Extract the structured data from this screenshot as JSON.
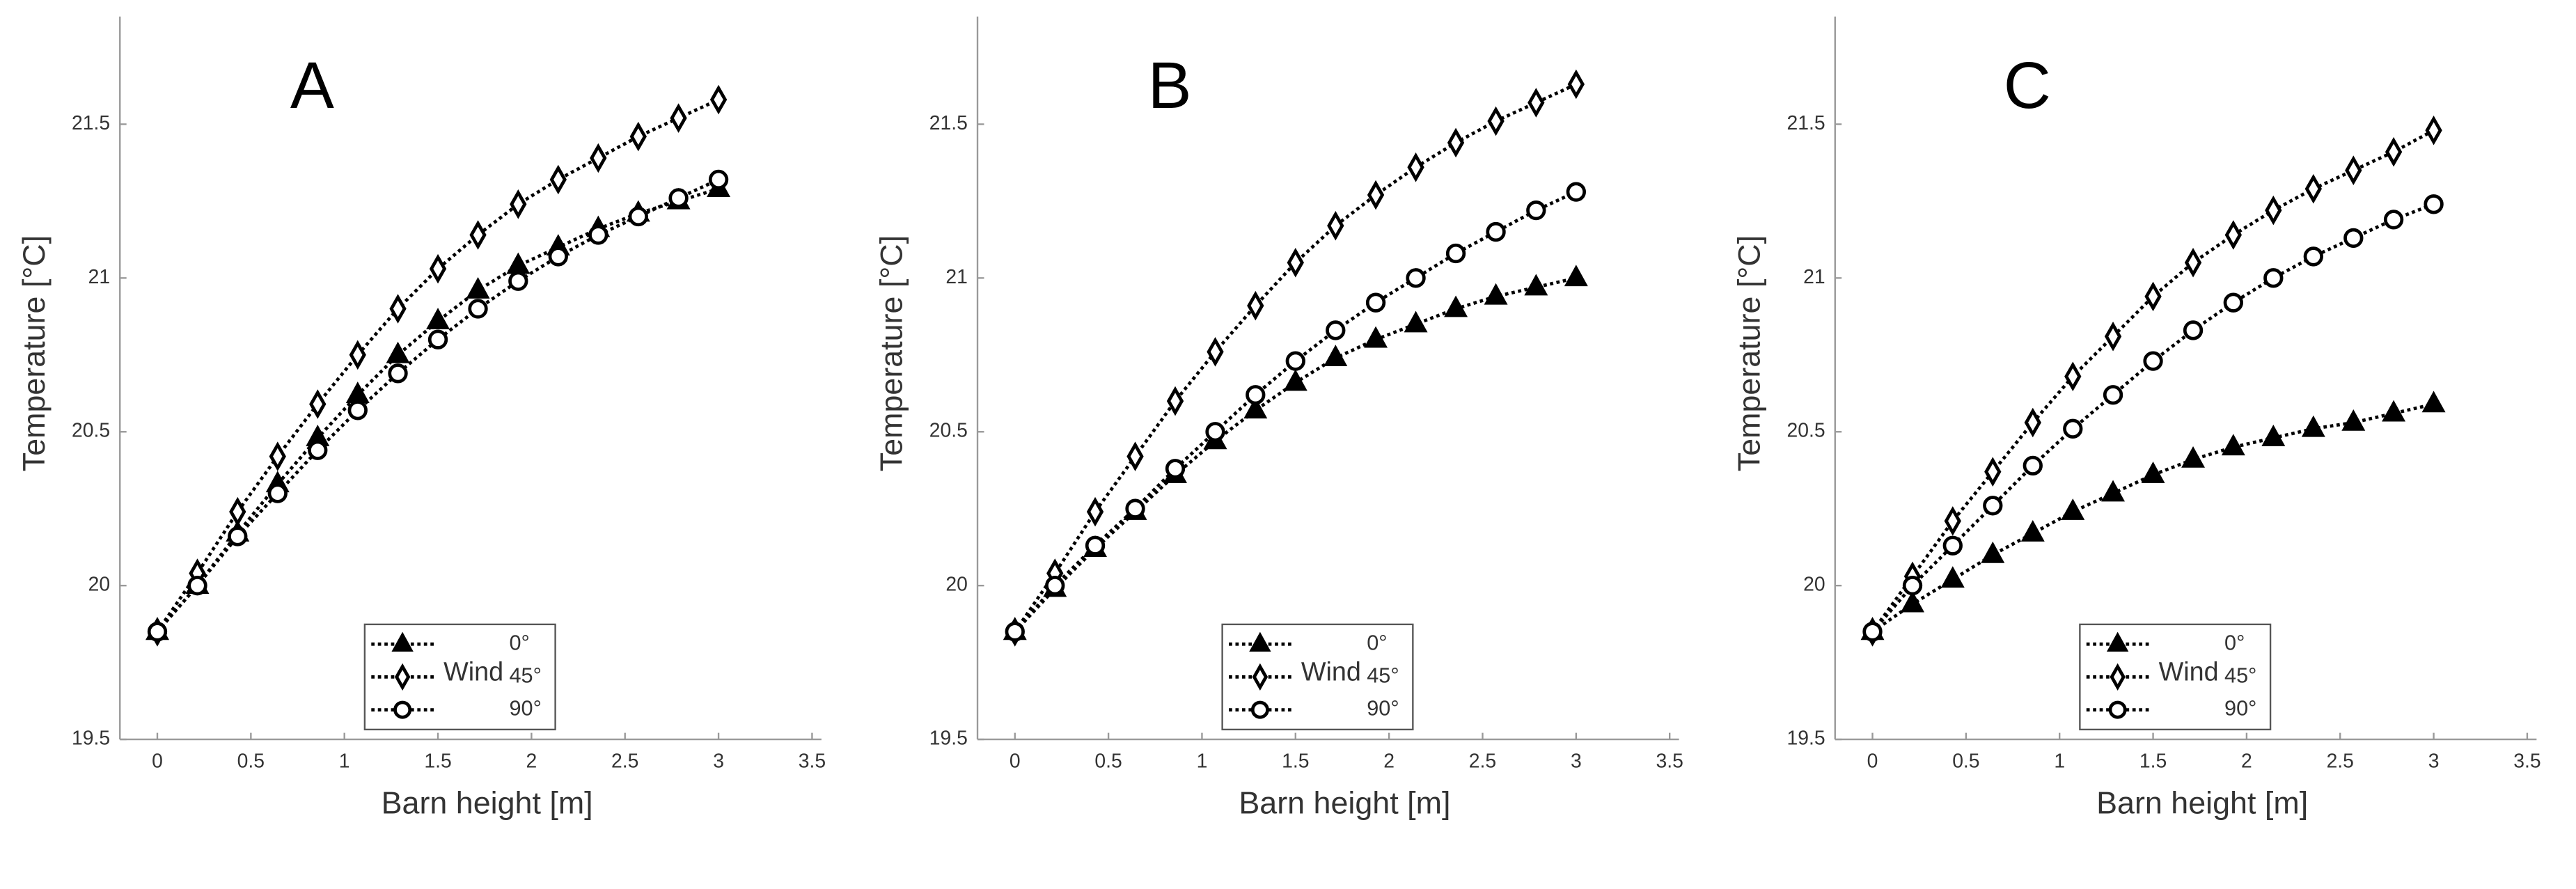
{
  "chart_data": [
    {
      "type": "line",
      "title": "A",
      "x_label": "Barn height [m]",
      "y_label": "Temperature [°C]",
      "legend_title": "Wind",
      "x": [
        0,
        0.214,
        0.429,
        0.643,
        0.857,
        1.071,
        1.286,
        1.5,
        1.714,
        1.929,
        2.143,
        2.357,
        2.571,
        2.786,
        3
      ],
      "series": [
        {
          "name": "0°",
          "color": "#000000",
          "marker": "triangle",
          "values": [
            19.85,
            20.0,
            20.17,
            20.33,
            20.48,
            20.62,
            20.75,
            20.86,
            20.96,
            21.04,
            21.1,
            21.16,
            21.21,
            21.25,
            21.29
          ]
        },
        {
          "name": "45°",
          "color": "#000000",
          "marker": "diamond",
          "values": [
            19.85,
            20.04,
            20.24,
            20.42,
            20.59,
            20.75,
            20.9,
            21.03,
            21.14,
            21.24,
            21.32,
            21.39,
            21.46,
            21.52,
            21.58
          ]
        },
        {
          "name": "90°",
          "color": "#000000",
          "marker": "circle",
          "values": [
            19.85,
            20.0,
            20.16,
            20.3,
            20.44,
            20.57,
            20.69,
            20.8,
            20.9,
            20.99,
            21.07,
            21.14,
            21.2,
            21.26,
            21.32
          ]
        }
      ],
      "xlim": [
        -0.2,
        3.55
      ],
      "ylim": [
        19.5,
        21.85
      ],
      "xticks": [
        0,
        0.5,
        1,
        1.5,
        2,
        2.5,
        3,
        3.5
      ],
      "yticks": [
        19.5,
        20,
        20.5,
        21,
        21.5
      ]
    },
    {
      "type": "line",
      "title": "B",
      "x_label": "Barn height [m]",
      "y_label": "Temperature [°C]",
      "legend_title": "Wind",
      "x": [
        0,
        0.214,
        0.429,
        0.643,
        0.857,
        1.071,
        1.286,
        1.5,
        1.714,
        1.929,
        2.143,
        2.357,
        2.571,
        2.786,
        3
      ],
      "series": [
        {
          "name": "0°",
          "color": "#000000",
          "marker": "triangle",
          "values": [
            19.85,
            19.99,
            20.12,
            20.24,
            20.36,
            20.47,
            20.57,
            20.66,
            20.74,
            20.8,
            20.85,
            20.9,
            20.94,
            20.97,
            21.0
          ]
        },
        {
          "name": "45°",
          "color": "#000000",
          "marker": "diamond",
          "values": [
            19.85,
            20.04,
            20.24,
            20.42,
            20.6,
            20.76,
            20.91,
            21.05,
            21.17,
            21.27,
            21.36,
            21.44,
            21.51,
            21.57,
            21.63
          ]
        },
        {
          "name": "90°",
          "color": "#000000",
          "marker": "circle",
          "values": [
            19.85,
            20.0,
            20.13,
            20.25,
            20.38,
            20.5,
            20.62,
            20.73,
            20.83,
            20.92,
            21.0,
            21.08,
            21.15,
            21.22,
            21.28
          ]
        }
      ],
      "xlim": [
        -0.2,
        3.55
      ],
      "ylim": [
        19.5,
        21.85
      ],
      "xticks": [
        0,
        0.5,
        1,
        1.5,
        2,
        2.5,
        3,
        3.5
      ],
      "yticks": [
        19.5,
        20,
        20.5,
        21,
        21.5
      ]
    },
    {
      "type": "line",
      "title": "C",
      "x_label": "Barn height [m]",
      "y_label": "Temperature [°C]",
      "legend_title": "Wind",
      "x": [
        0,
        0.214,
        0.429,
        0.643,
        0.857,
        1.071,
        1.286,
        1.5,
        1.714,
        1.929,
        2.143,
        2.357,
        2.571,
        2.786,
        3
      ],
      "series": [
        {
          "name": "0°",
          "color": "#000000",
          "marker": "triangle",
          "values": [
            19.85,
            19.94,
            20.02,
            20.1,
            20.17,
            20.24,
            20.3,
            20.36,
            20.41,
            20.45,
            20.48,
            20.51,
            20.53,
            20.56,
            20.59
          ]
        },
        {
          "name": "45°",
          "color": "#000000",
          "marker": "diamond",
          "values": [
            19.85,
            20.03,
            20.21,
            20.37,
            20.53,
            20.68,
            20.81,
            20.94,
            21.05,
            21.14,
            21.22,
            21.29,
            21.35,
            21.41,
            21.48
          ]
        },
        {
          "name": "90°",
          "color": "#000000",
          "marker": "circle",
          "values": [
            19.85,
            20.0,
            20.13,
            20.26,
            20.39,
            20.51,
            20.62,
            20.73,
            20.83,
            20.92,
            21.0,
            21.07,
            21.13,
            21.19,
            21.24
          ]
        }
      ],
      "xlim": [
        -0.2,
        3.55
      ],
      "ylim": [
        19.5,
        21.85
      ],
      "xticks": [
        0,
        0.5,
        1,
        1.5,
        2,
        2.5,
        3,
        3.5
      ],
      "yticks": [
        19.5,
        20,
        20.5,
        21,
        21.5
      ]
    }
  ]
}
